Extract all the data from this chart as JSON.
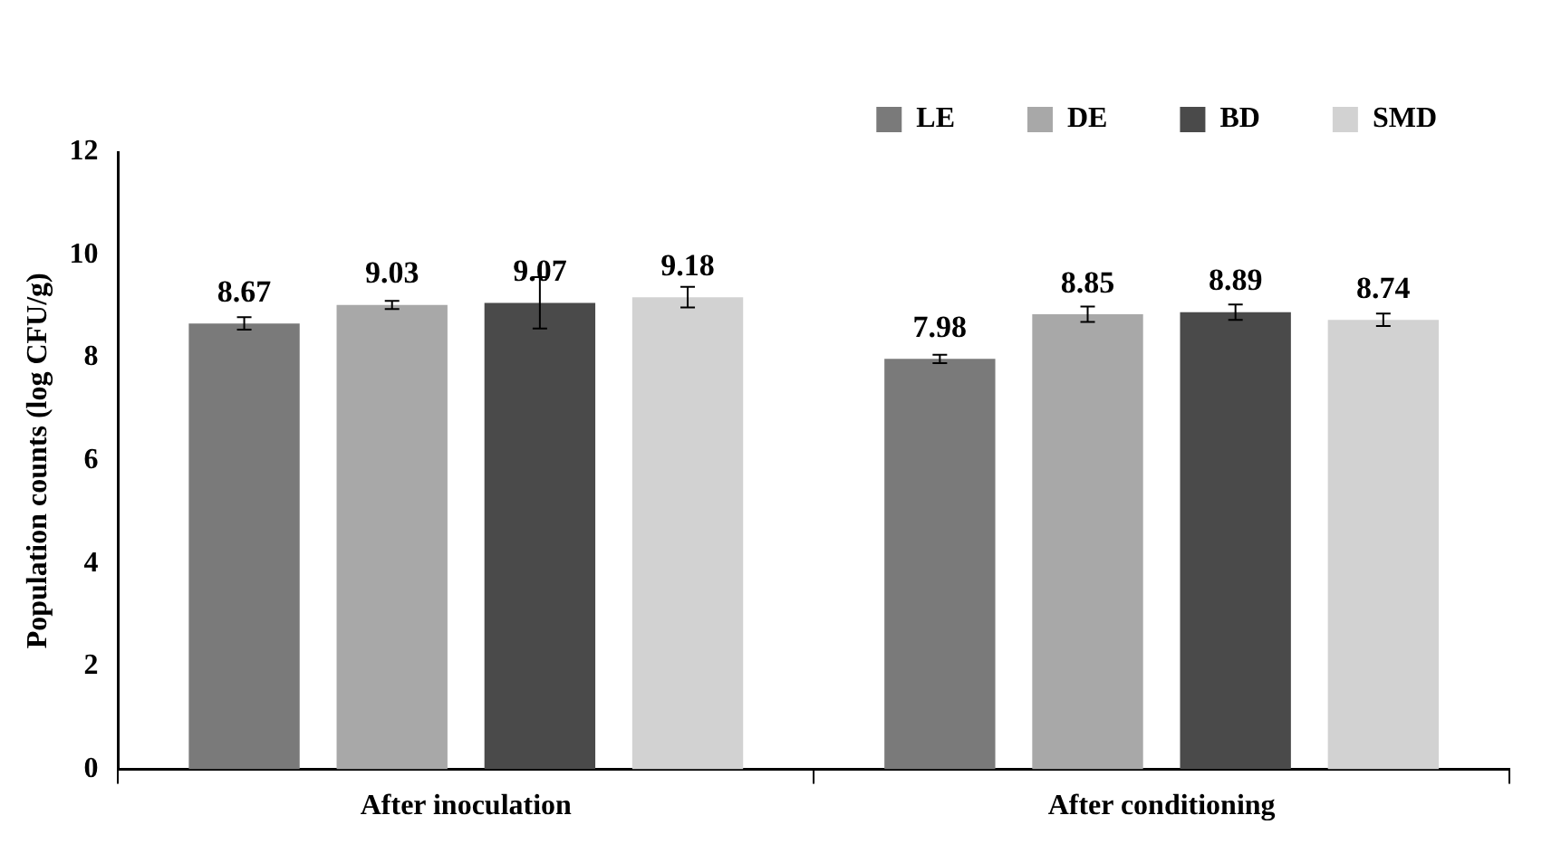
{
  "chart_data": {
    "type": "bar",
    "ylabel": "Population counts (log CFU/g)",
    "categories": [
      "After inoculation",
      "After conditioning"
    ],
    "series": [
      {
        "name": "LE",
        "color": "#7a7a7a",
        "values": [
          8.67,
          7.98
        ],
        "errors": [
          0.12,
          0.08
        ]
      },
      {
        "name": "DE",
        "color": "#a8a8a8",
        "values": [
          9.03,
          8.85
        ],
        "errors": [
          0.08,
          0.15
        ]
      },
      {
        "name": "BD",
        "color": "#4a4a4a",
        "values": [
          9.07,
          8.89
        ],
        "errors": [
          0.5,
          0.15
        ]
      },
      {
        "name": "SMD",
        "color": "#d2d2d2",
        "values": [
          9.18,
          8.74
        ],
        "errors": [
          0.2,
          0.12
        ]
      }
    ],
    "ylim": [
      0,
      12
    ],
    "yticks": [
      0,
      2,
      4,
      6,
      8,
      10,
      12
    ],
    "grid": false,
    "legend": "top right",
    "data_labels": true
  }
}
